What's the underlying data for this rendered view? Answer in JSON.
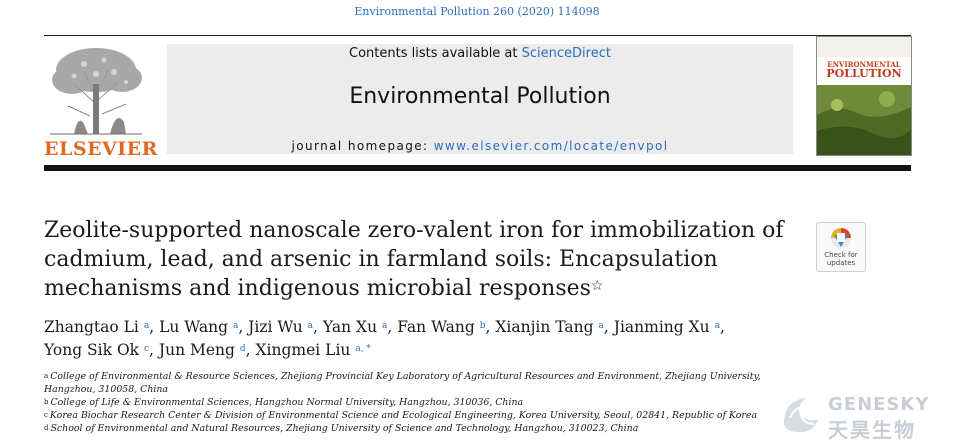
{
  "journal_ref": "Environmental Pollution 260 (2020) 114098",
  "masthead": {
    "contents_prefix": "Contents lists available at ",
    "contents_link": "ScienceDirect",
    "journal_name": "Environmental Pollution",
    "homepage_prefix": "journal homepage: ",
    "homepage_link": "www.elsevier.com/locate/envpol"
  },
  "publisher": {
    "name": "ELSEVIER",
    "logo_icon": "elsevier-tree-logo"
  },
  "cover": {
    "line1": "ENVIRONMENTAL",
    "line2": "POLLUTION"
  },
  "check_updates": {
    "line1": "Check for",
    "line2": "updates"
  },
  "article": {
    "title_line1": "Zeolite-supported nanoscale zero-valent iron for immobilization of",
    "title_line2": "cadmium, lead, and arsenic in farmland soils: Encapsulation",
    "title_line3": "mechanisms and indigenous microbial responses",
    "title_star": "☆"
  },
  "authors": [
    {
      "name": "Zhangtao Li",
      "aff": "a"
    },
    {
      "name": "Lu Wang",
      "aff": "a"
    },
    {
      "name": "Jizi Wu",
      "aff": "a"
    },
    {
      "name": "Yan Xu",
      "aff": "a"
    },
    {
      "name": "Fan Wang",
      "aff": "b"
    },
    {
      "name": "Xianjin Tang",
      "aff": "a"
    },
    {
      "name": "Jianming Xu",
      "aff": "a"
    },
    {
      "name": "Yong Sik Ok",
      "aff": "c"
    },
    {
      "name": "Jun Meng",
      "aff": "d"
    },
    {
      "name": "Xingmei Liu",
      "aff": "a, *"
    }
  ],
  "affiliations": [
    {
      "key": "a",
      "text": "College of Environmental & Resource Sciences, Zhejiang Provincial Key Laboratory of Agricultural Resources and Environment, Zhejiang University, Hangzhou, 310058, China"
    },
    {
      "key": "b",
      "text": "College of Life & Environmental Sciences, Hangzhou Normal University, Hangzhou, 310036, China"
    },
    {
      "key": "c",
      "text": "Korea Biochar Research Center & Division of Environmental Science and Ecological Engineering, Korea University, Seoul, 02841, Republic of Korea"
    },
    {
      "key": "d",
      "text": "School of Environmental and Natural Resources, Zhejiang University of Science and Technology, Hangzhou, 310023, China"
    }
  ],
  "watermark": {
    "en": "GENESKY",
    "cn": "天昊生物"
  },
  "colors": {
    "link": "#2a6ebb",
    "elsevier_orange": "#e06a23",
    "masthead_bg": "#ececec"
  }
}
